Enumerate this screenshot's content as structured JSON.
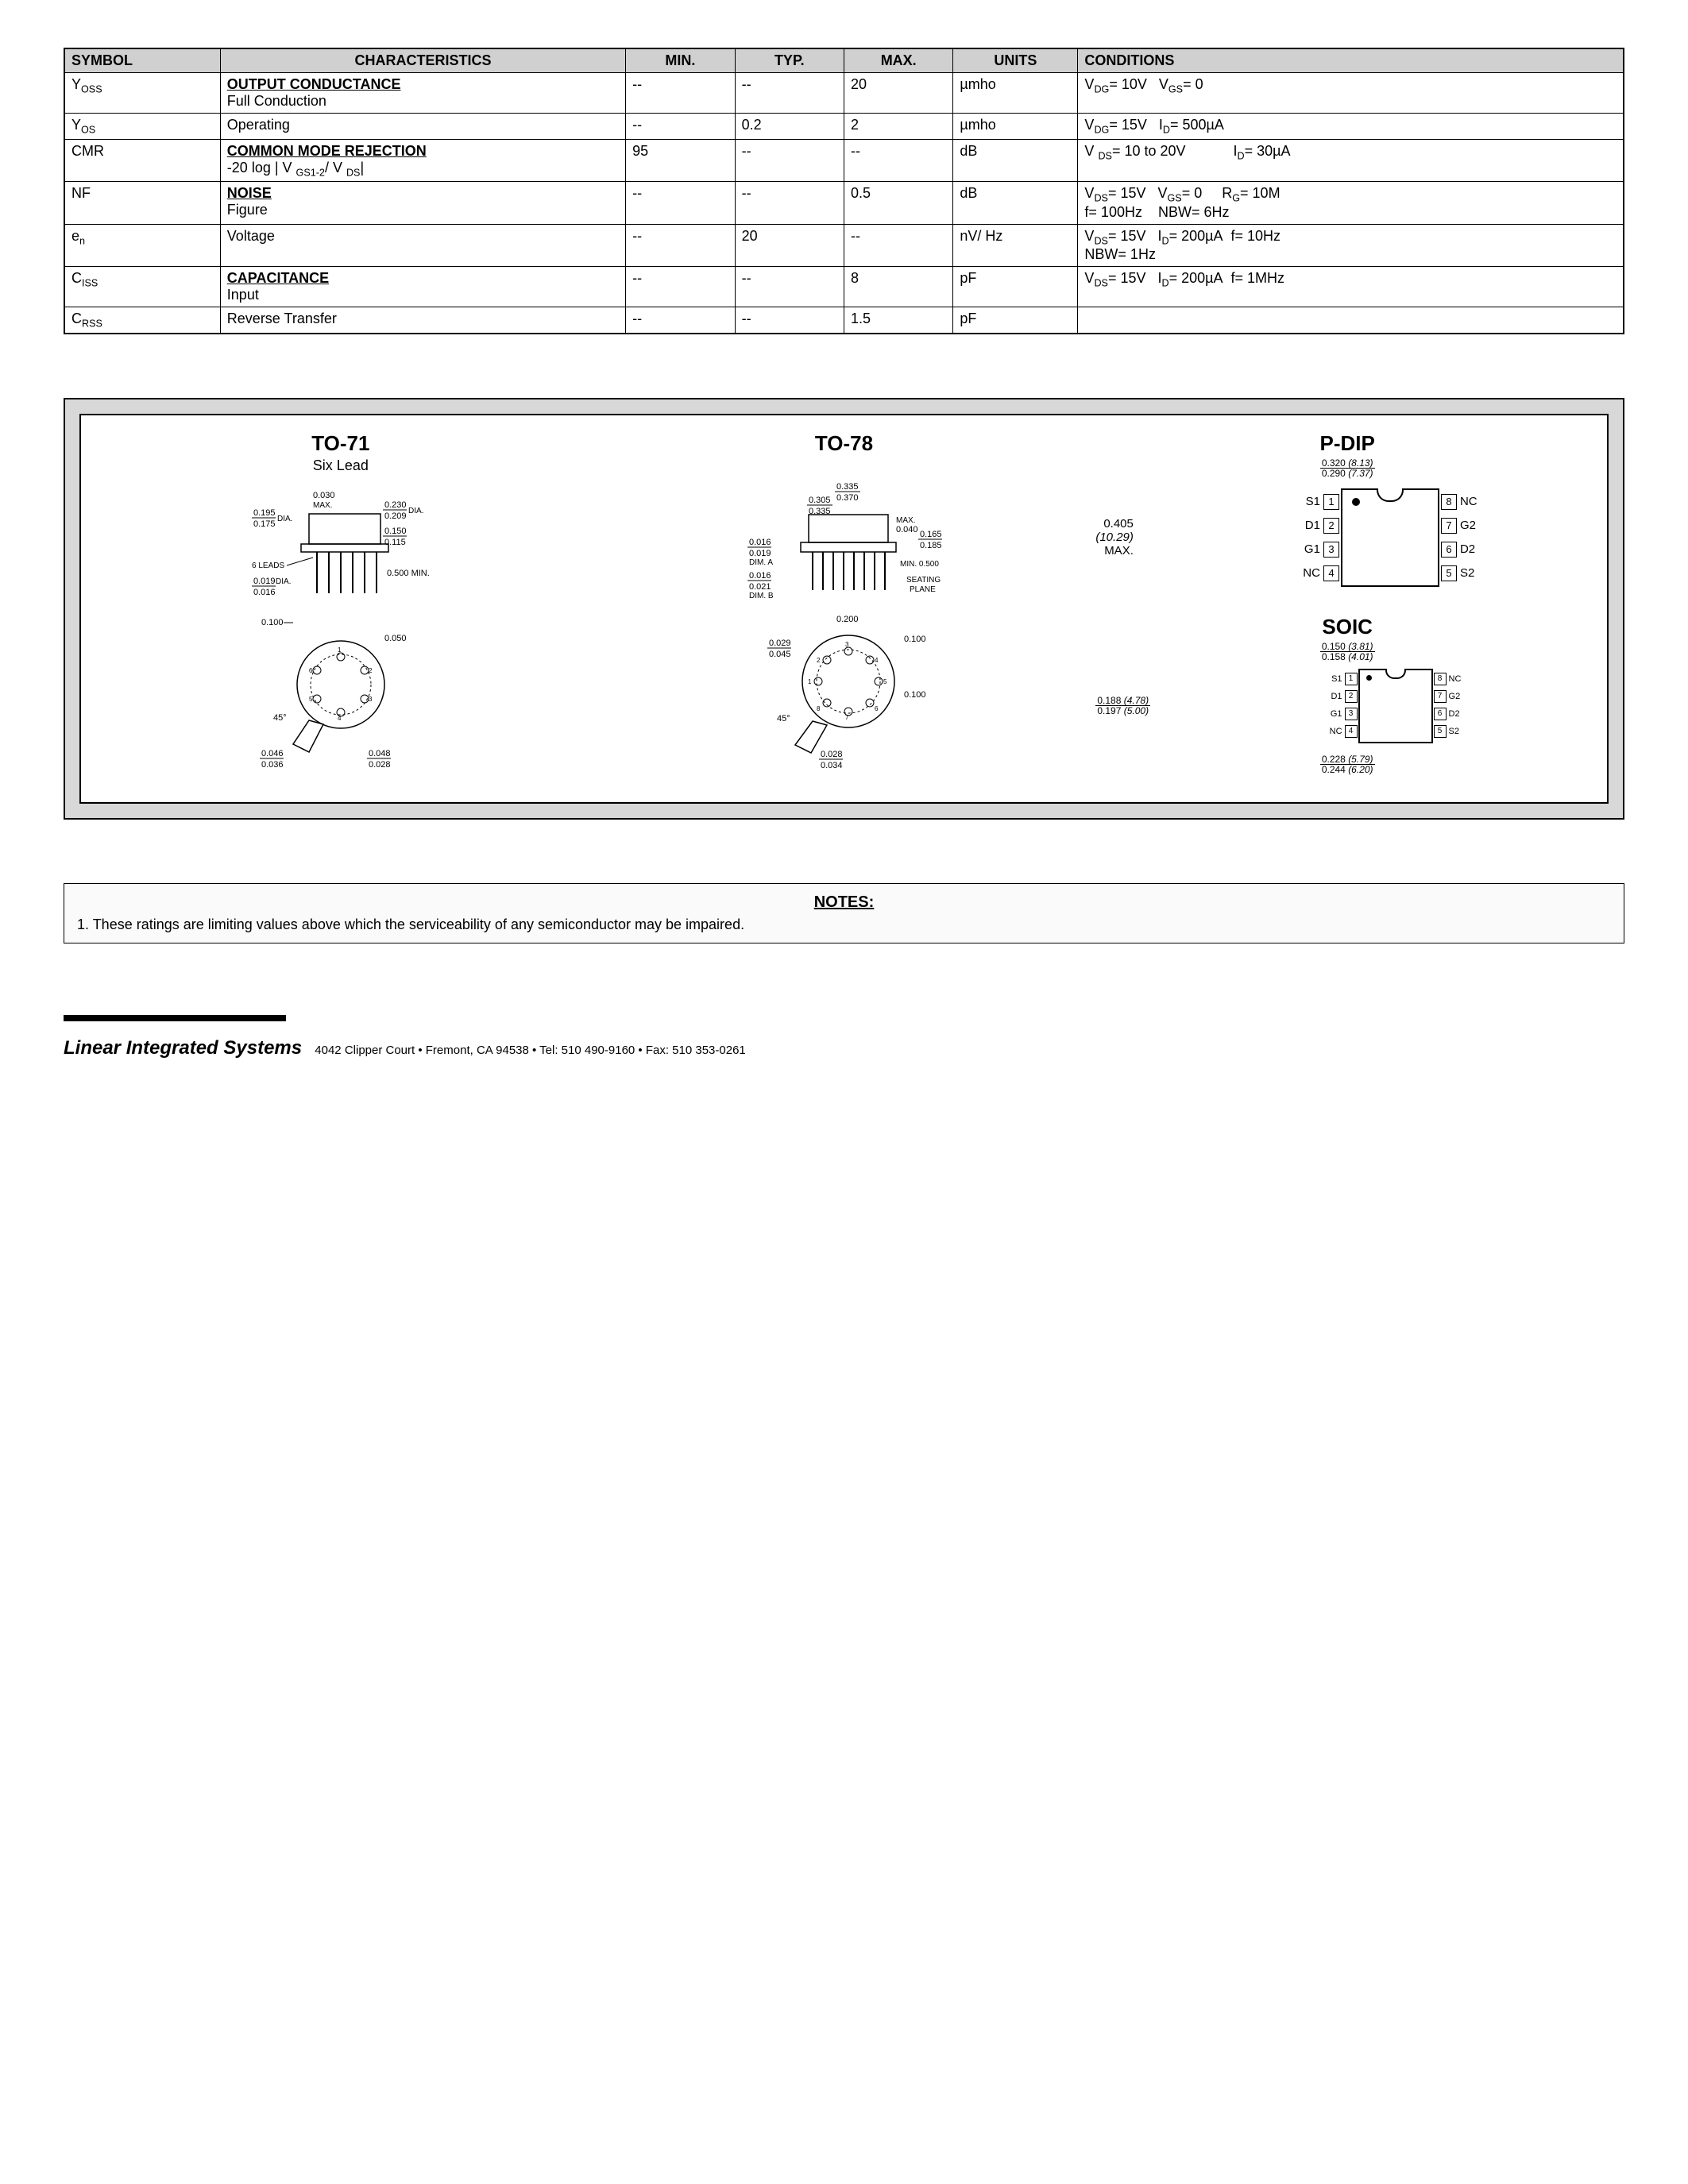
{
  "table": {
    "headers": [
      "SYMBOL",
      "CHARACTERISTICS",
      "MIN.",
      "TYP.",
      "MAX.",
      "UNITS",
      "CONDITIONS"
    ],
    "sections": [
      {
        "title": "OUTPUT CONDUCTANCE",
        "rows": [
          {
            "symbol": "Y<sub>OSS</sub>",
            "char": "Full Conduction",
            "min": "--",
            "typ": "--",
            "max": "20",
            "units": "µmho",
            "cond": "V<sub>DG</sub>= 10V&nbsp;&nbsp;&nbsp;V<sub>GS</sub>= 0"
          },
          {
            "symbol": "Y<sub>OS</sub>",
            "char": "Operating",
            "min": "--",
            "typ": "0.2",
            "max": "2",
            "units": "µmho",
            "cond": "V<sub>DG</sub>= 15V&nbsp;&nbsp;&nbsp;I<sub>D</sub>= 500µA"
          }
        ]
      },
      {
        "title": "COMMON MODE REJECTION",
        "rows": [
          {
            "symbol": "CMR",
            "char": "-20 log | V <sub>GS1-2</sub>/ V <sub>DS</sub>|",
            "min": "95",
            "typ": "--",
            "max": "--",
            "units": "dB",
            "cond": "V <sub>DS</sub>= 10 to 20V&nbsp;&nbsp;&nbsp;&nbsp;&nbsp;&nbsp;&nbsp;&nbsp;&nbsp;&nbsp;&nbsp;&nbsp;I<sub>D</sub>= 30µA"
          }
        ]
      },
      {
        "title": "NOISE",
        "rows": [
          {
            "symbol": "NF",
            "char": "Figure",
            "min": "--",
            "typ": "--",
            "max": "0.5",
            "units": "dB",
            "cond": "V<sub>DS</sub>= 15V&nbsp;&nbsp;&nbsp;V<sub>GS</sub>= 0&nbsp;&nbsp;&nbsp;&nbsp;&nbsp;R<sub>G</sub>= 10M<br>f= 100Hz&nbsp;&nbsp;&nbsp;&nbsp;NBW= 6Hz"
          },
          {
            "symbol": "e<sub>n</sub>",
            "char": "Voltage",
            "min": "--",
            "typ": "20",
            "max": "--",
            "units": "nV/ Hz",
            "cond": "V<sub>DS</sub>= 15V&nbsp;&nbsp;&nbsp;I<sub>D</sub>= 200µA&nbsp;&nbsp;f= 10Hz<br>NBW= 1Hz"
          }
        ]
      },
      {
        "title": "CAPACITANCE",
        "rows": [
          {
            "symbol": "C<sub>ISS</sub>",
            "char": "Input",
            "min": "--",
            "typ": "--",
            "max": "8",
            "units": "pF",
            "cond": "V<sub>DS</sub>= 15V&nbsp;&nbsp;&nbsp;I<sub>D</sub>= 200µA&nbsp;&nbsp;f= 1MHz"
          },
          {
            "symbol": "C<sub>RSS</sub>",
            "char": "Reverse Transfer",
            "min": "--",
            "typ": "--",
            "max": "1.5",
            "units": "pF",
            "cond": ""
          }
        ]
      }
    ]
  },
  "packages": {
    "to71": {
      "title": "TO-71",
      "subtitle": "Six Lead",
      "dims": {
        "d1": "0.195",
        "d2": "0.175",
        "d3": "0.230",
        "d4": "0.209",
        "d5": "0.030",
        "d6": "0.150",
        "d7": "0.115",
        "d8": "0.500 MIN.",
        "d9": "0.019",
        "d10": "0.016",
        "d11": "0.100",
        "d12": "0.050",
        "d13": "0.046",
        "d14": "0.036",
        "d15": "0.048",
        "d16": "0.028",
        "leads": "6 LEADS",
        "max": "MAX.",
        "ang": "45°",
        "dia": "DIA."
      }
    },
    "to78": {
      "title": "TO-78",
      "dims": {
        "d1": "0.335",
        "d2": "0.370",
        "d3": "0.305",
        "d4": "0.335",
        "d5": "0.016",
        "d6": "0.019",
        "d7": "0.016",
        "d8": "0.021",
        "d9": "0.040",
        "d10": "0.165",
        "d11": "0.185",
        "d12": "MIN. 0.500",
        "d13": "0.200",
        "d14": "0.100",
        "d15": "0.029",
        "d16": "0.045",
        "d17": "0.100",
        "d18": "0.028",
        "d19": "0.034",
        "max": "MAX.",
        "dimA": "DIM. A",
        "dimB": "DIM. B",
        "seat": "SEATING",
        "plane": "PLANE",
        "ang": "45°"
      }
    },
    "pdip": {
      "title": "P-DIP",
      "dims": {
        "w1": "0.320",
        "w1m": "(8.13)",
        "w2": "0.290",
        "w2m": "(7.37)",
        "h1": "0.405",
        "h1m": "(10.29)",
        "max": "MAX."
      },
      "left": [
        "S1",
        "D1",
        "G1",
        "NC"
      ],
      "right": [
        "NC",
        "G2",
        "D2",
        "S2"
      ],
      "lnum": [
        "1",
        "2",
        "3",
        "4"
      ],
      "rnum": [
        "8",
        "7",
        "6",
        "5"
      ]
    },
    "soic": {
      "title": "SOIC",
      "dims": {
        "w1": "0.150",
        "w1m": "(3.81)",
        "w2": "0.158",
        "w2m": "(4.01)",
        "h1": "0.188",
        "h1m": "(4.78)",
        "h2": "0.197",
        "h2m": "(5.00)",
        "b1": "0.228",
        "b1m": "(5.79)",
        "b2": "0.244",
        "b2m": "(6.20)"
      },
      "left": [
        "S1",
        "D1",
        "G1",
        "NC"
      ],
      "right": [
        "NC",
        "G2",
        "D2",
        "S2"
      ],
      "lnum": [
        "1",
        "2",
        "3",
        "4"
      ],
      "rnum": [
        "8",
        "7",
        "6",
        "5"
      ]
    }
  },
  "notes": {
    "title": "NOTES:",
    "n1": "1. These ratings are limiting values above which the serviceability of any semiconductor may be impaired."
  },
  "footer": {
    "brand": "Linear Integrated Systems",
    "addr": "4042 Clipper Court  •  Fremont, CA 94538  •  Tel: 510 490-9160  •  Fax: 510 353-0261"
  }
}
